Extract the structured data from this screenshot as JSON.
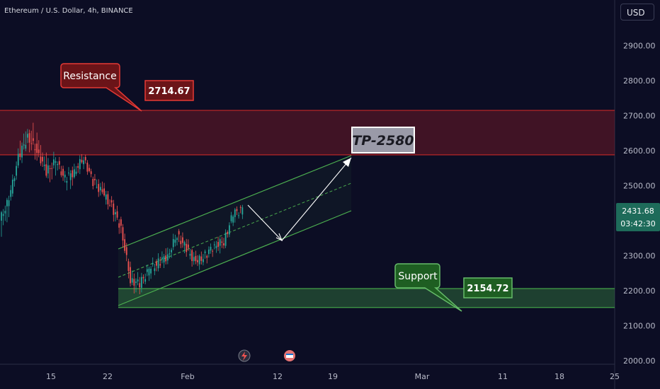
{
  "header": {
    "symbol_title": "Ethereum / U.S. Dollar, 4h, BINANCE"
  },
  "price_scale": {
    "currency": "USD"
  },
  "chart_data": {
    "type": "candlestick",
    "symbol": "Ethereum / U.S. Dollar",
    "interval": "4h",
    "exchange": "BINANCE",
    "y_ticks": [
      "2000.00",
      "2100.00",
      "2200.00",
      "2300.00",
      "2400.00",
      "2500.00",
      "2600.00",
      "2700.00",
      "2800.00",
      "2900.00"
    ],
    "ylim": [
      1990,
      3000
    ],
    "x_ticks": [
      "15",
      "22",
      "Feb",
      "12",
      "19",
      "Mar",
      "11",
      "18",
      "25"
    ],
    "current_price": "2431.68",
    "countdown": "03:42:30",
    "colors": {
      "up": "#26a69a",
      "down": "#ef5350",
      "resistance": "#c62828",
      "support": "#43a047",
      "channel": "#4caf50"
    },
    "resistance_zone": {
      "top": 2715,
      "bottom": 2588,
      "label": "Resistance",
      "price_label": "2714.67"
    },
    "support_zone": {
      "top": 2206,
      "bottom": 2152,
      "label": "Support",
      "price_label": "2154.72"
    },
    "target": {
      "label": "TP-2580",
      "value": 2580
    },
    "channel": {
      "upper": [
        [
          22,
          2320
        ],
        [
          19.9,
          2588
        ]
      ],
      "lower": [
        [
          22,
          2150
        ],
        [
          19.9,
          2420
        ]
      ]
    },
    "candles_ohlc_approx": [
      [
        2400,
        2480,
        2330,
        2460
      ],
      [
        2460,
        2600,
        2440,
        2580
      ],
      [
        2580,
        2700,
        2560,
        2640
      ],
      [
        2640,
        2710,
        2560,
        2600
      ],
      [
        2600,
        2650,
        2520,
        2540
      ],
      [
        2540,
        2600,
        2480,
        2570
      ],
      [
        2570,
        2590,
        2500,
        2520
      ],
      [
        2520,
        2560,
        2480,
        2540
      ],
      [
        2540,
        2600,
        2520,
        2580
      ],
      [
        2580,
        2590,
        2500,
        2510
      ],
      [
        2510,
        2540,
        2460,
        2480
      ],
      [
        2480,
        2500,
        2420,
        2440
      ],
      [
        2440,
        2460,
        2350,
        2380
      ],
      [
        2380,
        2400,
        2200,
        2230
      ],
      [
        2230,
        2260,
        2180,
        2220
      ],
      [
        2220,
        2280,
        2200,
        2260
      ],
      [
        2260,
        2300,
        2240,
        2280
      ],
      [
        2280,
        2330,
        2260,
        2300
      ],
      [
        2300,
        2380,
        2280,
        2360
      ],
      [
        2360,
        2380,
        2290,
        2320
      ],
      [
        2320,
        2340,
        2260,
        2280
      ],
      [
        2280,
        2320,
        2260,
        2300
      ],
      [
        2300,
        2340,
        2280,
        2330
      ],
      [
        2330,
        2360,
        2300,
        2340
      ],
      [
        2340,
        2430,
        2330,
        2420
      ],
      [
        2420,
        2440,
        2400,
        2432
      ]
    ]
  }
}
